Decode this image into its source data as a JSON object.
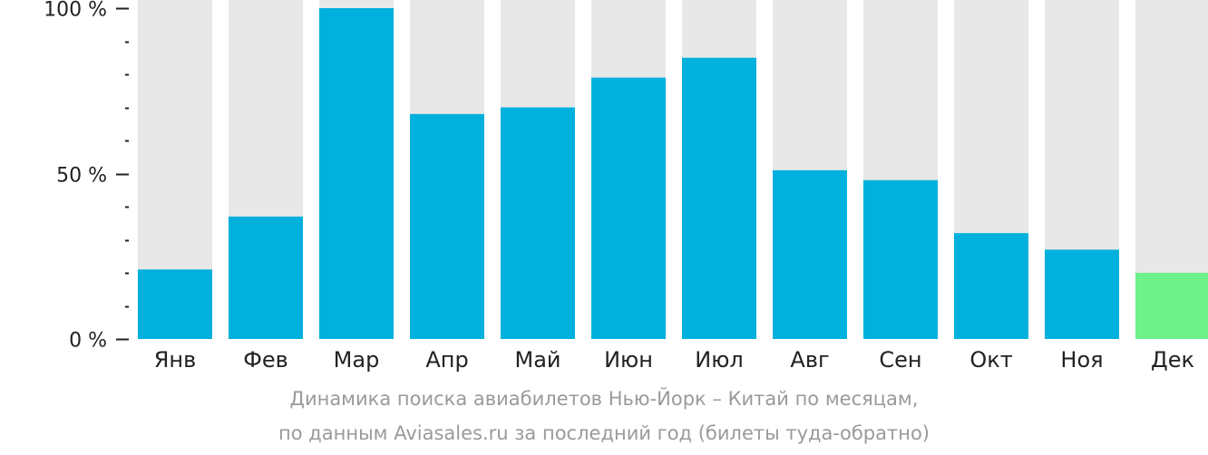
{
  "chart_data": {
    "type": "bar",
    "categories": [
      "Янв",
      "Фев",
      "Мар",
      "Апр",
      "Май",
      "Июн",
      "Июл",
      "Авг",
      "Сен",
      "Окт",
      "Ноя",
      "Дек"
    ],
    "values": [
      21,
      37,
      100,
      68,
      70,
      79,
      85,
      51,
      48,
      32,
      27,
      20
    ],
    "ylim": [
      0,
      100
    ],
    "yticks": [
      {
        "value": 0,
        "label": "0 %"
      },
      {
        "value": 50,
        "label": "50 %"
      },
      {
        "value": 100,
        "label": "100 %"
      }
    ],
    "minor_tick_step": 10,
    "highlight_index": 11,
    "colors": {
      "bar": "#00b0dd",
      "highlight": "#6ef08a",
      "background_bar": "#e8e8e8",
      "axis": "#222222"
    }
  },
  "caption": {
    "line1": "Динамика поиска авиабилетов Нью-Йорк – Китай по месяцам,",
    "line2": "по данным Aviasales.ru за последний год (билеты туда-обратно)"
  }
}
